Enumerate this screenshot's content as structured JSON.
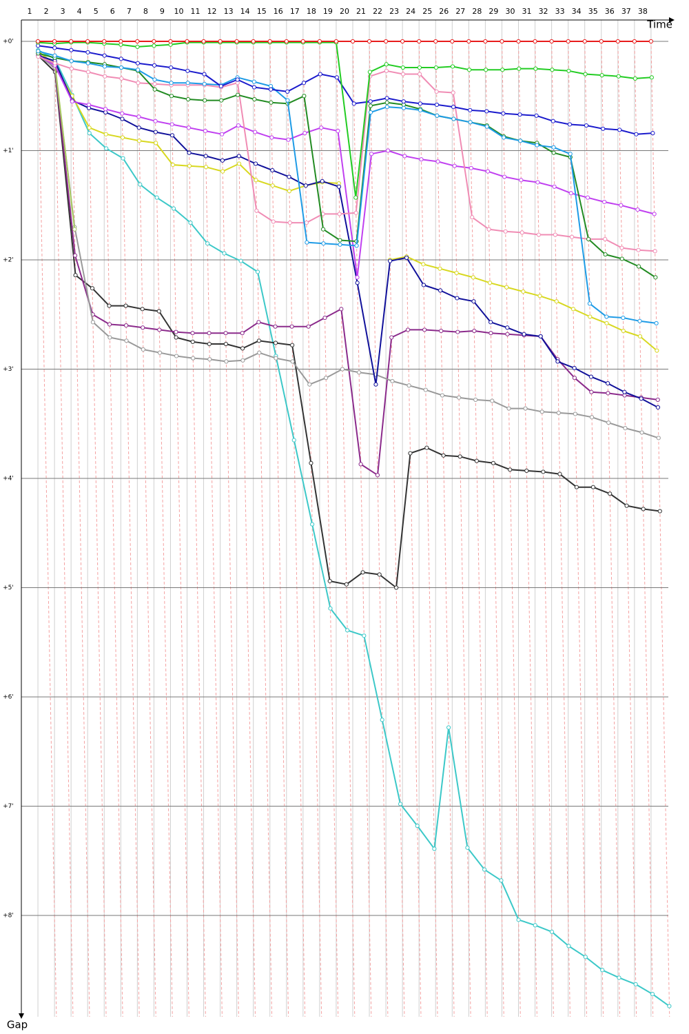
{
  "chart_data": {
    "type": "line",
    "x_label": "Time",
    "y_label": "Gap",
    "categories": [
      "1",
      "2",
      "3",
      "4",
      "5",
      "6",
      "7",
      "8",
      "9",
      "10",
      "11",
      "12",
      "13",
      "14",
      "15",
      "16",
      "17",
      "18",
      "19",
      "20",
      "21",
      "22",
      "23",
      "24",
      "25",
      "26",
      "27",
      "28",
      "29",
      "30",
      "31",
      "32",
      "33",
      "34",
      "35",
      "36",
      "37",
      "38"
    ],
    "ylim": [
      0,
      8.95
    ],
    "yticks": [
      {
        "value": 0,
        "label": "+0'"
      },
      {
        "value": 1,
        "label": "+1'"
      },
      {
        "value": 2,
        "label": "+2'"
      },
      {
        "value": 3,
        "label": "+3'"
      },
      {
        "value": 4,
        "label": "+4'"
      },
      {
        "value": 5,
        "label": "+5'"
      },
      {
        "value": 6,
        "label": "+6'"
      },
      {
        "value": 7,
        "label": "+7'"
      },
      {
        "value": 8,
        "label": "+8'"
      }
    ],
    "grid": true,
    "series": [
      {
        "color": "#3cc8c8",
        "values": [
          0.08,
          0.16,
          0.49,
          0.84,
          0.98,
          1.07,
          1.31,
          1.43,
          1.53,
          1.66,
          1.85,
          1.94,
          2.01,
          2.11,
          2.88,
          3.65,
          4.42,
          5.19,
          5.39,
          5.44,
          6.21,
          6.98,
          7.18,
          7.39,
          6.28,
          7.38,
          7.58,
          7.68,
          8.04,
          8.09,
          8.15,
          8.28,
          8.38,
          8.5,
          8.57,
          8.63,
          8.72,
          8.83
        ]
      },
      {
        "color": "#333333",
        "values": [
          0.13,
          0.28,
          2.14,
          2.26,
          2.42,
          2.42,
          2.45,
          2.47,
          2.71,
          2.75,
          2.77,
          2.77,
          2.81,
          2.74,
          2.76,
          2.78,
          3.86,
          4.94,
          4.97,
          4.86,
          4.88,
          5.0,
          3.77,
          3.72,
          3.79,
          3.8,
          3.84,
          3.86,
          3.92,
          3.93,
          3.94,
          3.96,
          4.08,
          4.08,
          4.14,
          4.25,
          4.28,
          4.3
        ]
      },
      {
        "color": "#8b2a8b",
        "values": [
          0.11,
          0.25,
          1.96,
          2.5,
          2.59,
          2.6,
          2.62,
          2.64,
          2.66,
          2.67,
          2.67,
          2.67,
          2.67,
          2.57,
          2.61,
          2.61,
          2.61,
          2.53,
          2.45,
          3.87,
          3.97,
          2.71,
          2.64,
          2.64,
          2.65,
          2.66,
          2.65,
          2.67,
          2.68,
          2.69,
          2.7,
          2.91,
          3.08,
          3.21,
          3.22,
          3.24,
          3.26,
          3.28
        ]
      },
      {
        "color": "#999999",
        "values": [
          0.13,
          0.24,
          1.7,
          2.57,
          2.71,
          2.74,
          2.82,
          2.85,
          2.88,
          2.9,
          2.91,
          2.93,
          2.92,
          2.85,
          2.9,
          2.93,
          3.14,
          3.08,
          3.0,
          3.03,
          3.05,
          3.11,
          3.15,
          3.19,
          3.24,
          3.26,
          3.28,
          3.29,
          3.36,
          3.36,
          3.39,
          3.4,
          3.41,
          3.44,
          3.49,
          3.54,
          3.58,
          3.63
        ]
      },
      {
        "color": "#a8c860",
        "values": [
          0.09,
          0.21,
          1.72,
          null,
          null,
          null,
          null,
          null,
          null,
          null,
          null,
          null,
          null,
          null,
          null,
          null,
          null,
          null,
          null,
          null,
          null,
          null,
          null,
          null,
          null,
          null,
          null,
          null,
          null,
          null,
          null,
          null,
          null,
          null,
          null,
          null,
          null,
          null
        ]
      },
      {
        "color": "#d8d820",
        "values": [
          0.09,
          0.22,
          0.5,
          0.79,
          0.85,
          0.88,
          0.91,
          0.93,
          1.13,
          1.14,
          1.15,
          1.19,
          1.12,
          1.27,
          1.32,
          1.37,
          1.32,
          1.29,
          1.3,
          null,
          null,
          2.0,
          1.97,
          2.04,
          2.08,
          2.12,
          2.16,
          2.21,
          2.25,
          2.29,
          2.33,
          2.38,
          2.45,
          2.52,
          2.58,
          2.65,
          2.7,
          2.83
        ]
      },
      {
        "color": "#10109a",
        "values": [
          0.13,
          0.18,
          0.54,
          0.61,
          0.65,
          0.71,
          0.79,
          0.83,
          0.86,
          1.02,
          1.05,
          1.09,
          1.05,
          1.12,
          1.18,
          1.24,
          1.32,
          1.28,
          1.33,
          2.21,
          3.14,
          2.01,
          1.98,
          2.23,
          2.28,
          2.35,
          2.38,
          2.57,
          2.62,
          2.68,
          2.7,
          2.93,
          2.99,
          3.07,
          3.13,
          3.21,
          3.27,
          3.35
        ]
      },
      {
        "color": "#c040f0",
        "values": [
          0.13,
          0.22,
          0.55,
          0.58,
          0.62,
          0.66,
          0.69,
          0.73,
          0.76,
          0.79,
          0.82,
          0.85,
          0.77,
          0.83,
          0.88,
          0.9,
          0.84,
          0.79,
          0.82,
          2.16,
          1.03,
          1.0,
          1.05,
          1.08,
          1.1,
          1.14,
          1.16,
          1.19,
          1.24,
          1.27,
          1.29,
          1.33,
          1.39,
          1.43,
          1.47,
          1.5,
          1.54,
          1.58
        ]
      },
      {
        "color": "#f08cb4",
        "values": [
          0.14,
          0.2,
          0.25,
          0.28,
          0.32,
          0.34,
          0.38,
          0.39,
          0.4,
          0.4,
          0.4,
          0.42,
          0.38,
          1.55,
          1.65,
          1.66,
          1.66,
          1.58,
          1.58,
          1.57,
          0.32,
          0.27,
          0.3,
          0.3,
          0.46,
          0.47,
          1.61,
          1.72,
          1.74,
          1.75,
          1.77,
          1.77,
          1.79,
          1.81,
          1.81,
          1.89,
          1.91,
          1.92
        ]
      },
      {
        "color": "#228b22",
        "values": [
          0.11,
          0.15,
          0.18,
          0.19,
          0.21,
          0.24,
          0.27,
          0.44,
          0.5,
          0.53,
          0.54,
          0.54,
          0.49,
          0.53,
          0.56,
          0.57,
          0.5,
          1.72,
          1.82,
          1.83,
          0.59,
          0.56,
          0.58,
          0.62,
          0.68,
          0.71,
          0.74,
          0.77,
          0.87,
          0.91,
          0.93,
          1.02,
          1.06,
          1.81,
          1.95,
          1.99,
          2.06,
          2.16
        ]
      },
      {
        "color": "#1e9be6",
        "values": [
          0.09,
          0.13,
          0.18,
          0.2,
          0.23,
          0.24,
          0.26,
          0.35,
          0.38,
          0.38,
          0.39,
          0.4,
          0.33,
          0.37,
          0.41,
          0.54,
          1.84,
          1.85,
          1.86,
          1.87,
          0.65,
          0.6,
          0.61,
          0.63,
          0.68,
          0.71,
          0.74,
          0.78,
          0.88,
          0.91,
          0.95,
          0.97,
          1.03,
          2.4,
          2.52,
          2.53,
          2.56,
          2.58
        ]
      },
      {
        "color": "#1a1acc",
        "values": [
          0.04,
          0.06,
          0.08,
          0.1,
          0.13,
          0.16,
          0.2,
          0.22,
          0.24,
          0.27,
          0.3,
          0.41,
          0.35,
          0.42,
          0.44,
          0.46,
          0.38,
          0.3,
          0.33,
          0.57,
          0.55,
          0.52,
          0.55,
          0.57,
          0.58,
          0.6,
          0.63,
          0.64,
          0.66,
          0.67,
          0.68,
          0.73,
          0.76,
          0.77,
          0.8,
          0.81,
          0.85,
          0.84
        ]
      },
      {
        "color": "#22cc22",
        "values": [
          0.01,
          0.02,
          0.01,
          0.01,
          0.02,
          0.03,
          0.05,
          0.04,
          0.03,
          0.01,
          0.01,
          0.01,
          0.01,
          0.01,
          0.01,
          0.01,
          0.01,
          0.01,
          0.01,
          1.43,
          0.28,
          0.21,
          0.24,
          0.24,
          0.24,
          0.23,
          0.26,
          0.26,
          0.26,
          0.25,
          0.25,
          0.26,
          0.27,
          0.3,
          0.31,
          0.32,
          0.34,
          0.33
        ]
      },
      {
        "color": "#e81c1c",
        "values": [
          0,
          0,
          0,
          0,
          0,
          0,
          0,
          0,
          0,
          0,
          0,
          0,
          0,
          0,
          0,
          0,
          0,
          0,
          0,
          0,
          0,
          0,
          0,
          0,
          0,
          0,
          0,
          0,
          0,
          0,
          0,
          0,
          0,
          0,
          0,
          0,
          0,
          0
        ]
      }
    ]
  }
}
